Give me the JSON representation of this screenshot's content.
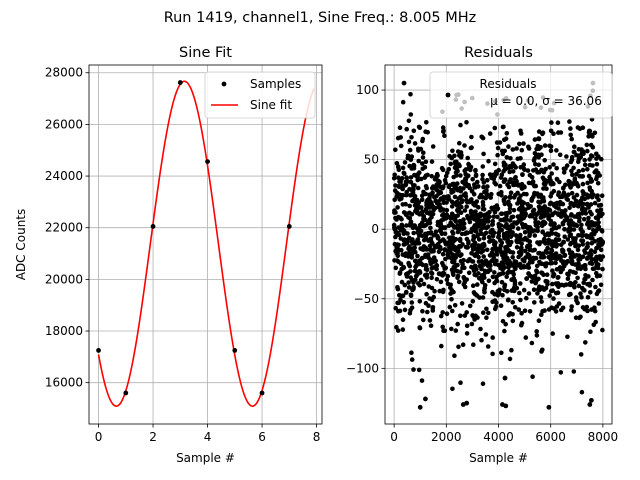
{
  "figure": {
    "suptitle": "Run 1419, channel1, Sine Freq.: 8.005 MHz"
  },
  "chart_data": [
    {
      "type": "line",
      "title": "Sine Fit",
      "xlabel": "Sample #",
      "ylabel": "ADC Counts",
      "xlim": [
        -0.35,
        8.2
      ],
      "ylim": [
        14400,
        28300
      ],
      "xticks": [
        0,
        2,
        4,
        6,
        8
      ],
      "yticks": [
        16000,
        18000,
        20000,
        22000,
        24000,
        26000,
        28000
      ],
      "xtick_labels": [
        "0",
        "2",
        "4",
        "6",
        "8"
      ],
      "ytick_labels": [
        "16000",
        "18000",
        "20000",
        "22000",
        "24000",
        "26000",
        "28000"
      ],
      "grid": true,
      "legend_position": "top-right",
      "series": [
        {
          "name": "Samples",
          "kind": "scatter",
          "color": "#000000",
          "x": [
            0,
            1,
            2,
            3,
            4,
            5,
            6,
            7
          ],
          "y": [
            17250,
            15600,
            22050,
            27620,
            24560,
            17250,
            15600,
            22050
          ]
        },
        {
          "name": "Sine fit",
          "kind": "line",
          "color": "#ff0000",
          "fit": {
            "mean": 21380,
            "amplitude": 6290,
            "period_samples": 4.996,
            "peak_at": 3.15,
            "x_range": [
              0,
              7.9
            ]
          }
        }
      ]
    },
    {
      "type": "scatter",
      "title": "Residuals",
      "xlabel": "Sample #",
      "ylabel": "",
      "xlim": [
        -350,
        8350
      ],
      "ylim": [
        -140,
        118
      ],
      "xticks": [
        0,
        2000,
        4000,
        6000,
        8000
      ],
      "yticks": [
        -100,
        -50,
        0,
        50,
        100
      ],
      "xtick_labels": [
        "0",
        "2000",
        "4000",
        "6000",
        "8000"
      ],
      "ytick_labels": [
        "−100",
        "−50",
        "0",
        "50",
        "100"
      ],
      "grid": true,
      "legend_position": "top-right",
      "legend_lines": [
        "Residuals",
        "μ = 0.0, σ = 36.06"
      ],
      "series": [
        {
          "name": "Residuals",
          "color": "#000000",
          "n_points": 8000,
          "mean": 0.0,
          "std": 36.06,
          "outliers": [
            {
              "x": 380,
              "y": 105
            },
            {
              "x": 7620,
              "y": 105
            },
            {
              "x": 1000,
              "y": -128
            },
            {
              "x": 1200,
              "y": -122
            },
            {
              "x": 2650,
              "y": -126
            },
            {
              "x": 2780,
              "y": -125
            },
            {
              "x": 4150,
              "y": -126
            },
            {
              "x": 4280,
              "y": -127
            },
            {
              "x": 5930,
              "y": -128
            },
            {
              "x": 7500,
              "y": -126
            },
            {
              "x": 7560,
              "y": -123
            },
            {
              "x": 4250,
              "y": -107
            }
          ]
        }
      ]
    }
  ]
}
